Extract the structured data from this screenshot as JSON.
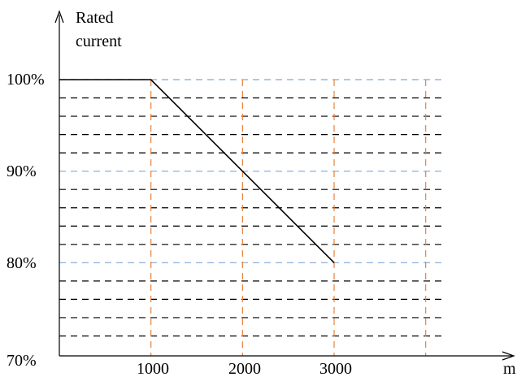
{
  "chart_data": {
    "type": "line",
    "ylabel_lines": [
      "Rated",
      "current"
    ],
    "xlabel": "m",
    "x_ticks": [
      1000,
      2000,
      3000
    ],
    "x_tick_labels": [
      "1000",
      "2000",
      "3000"
    ],
    "y_ticks": [
      70,
      80,
      90,
      100
    ],
    "y_tick_labels": [
      "70%",
      "80%",
      "90%",
      "100%"
    ],
    "xlim": [
      0,
      4000
    ],
    "ylim": [
      70,
      100
    ],
    "grid": true,
    "grid_minor_y_step": 2,
    "grid_major_color": "#7fa7d8",
    "grid_minor_color": "#000000",
    "grid_vertical_color": "#e8823a",
    "line_color": "#000000",
    "series": [
      {
        "x": [
          0,
          1000,
          3000
        ],
        "y": [
          100,
          100,
          80
        ]
      }
    ]
  }
}
